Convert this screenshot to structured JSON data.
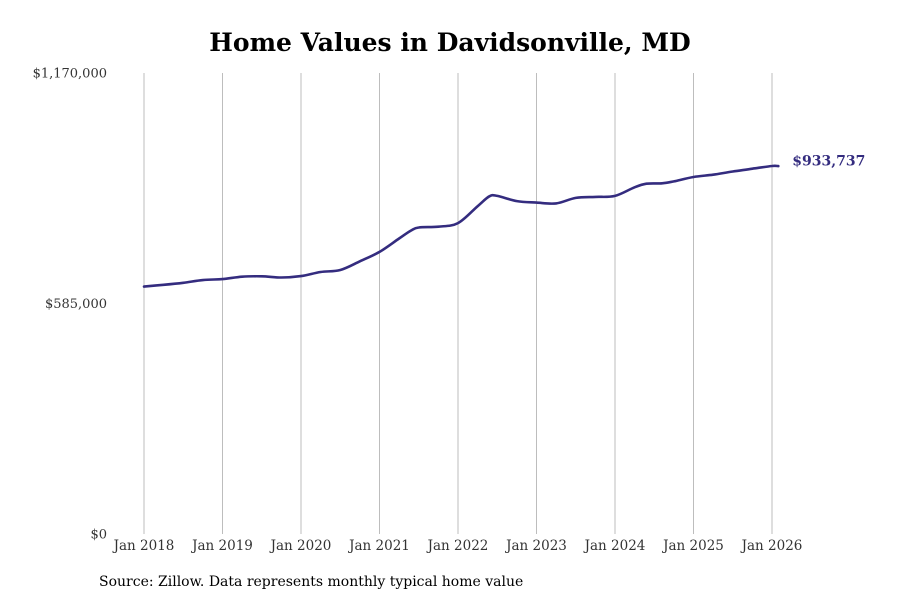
{
  "colors": {
    "line": "#342c7f",
    "grid": "#bdbdbd",
    "text": "#333333"
  },
  "chart_data": {
    "type": "line",
    "title": "Home Values in Davidsonville, MD",
    "source": "Source: Zillow. Data represents monthly typical home value",
    "ylim": [
      0,
      1170000
    ],
    "y_ticks": [
      {
        "value": 0,
        "label": "$0"
      },
      {
        "value": 585000,
        "label": "$585,000"
      },
      {
        "value": 1170000,
        "label": "$1,170,000"
      }
    ],
    "x_ticks": [
      {
        "value": 2018.0,
        "label": "Jan 2018"
      },
      {
        "value": 2019.0,
        "label": "Jan 2019"
      },
      {
        "value": 2020.0,
        "label": "Jan 2020"
      },
      {
        "value": 2021.0,
        "label": "Jan 2021"
      },
      {
        "value": 2022.0,
        "label": "Jan 2022"
      },
      {
        "value": 2023.0,
        "label": "Jan 2023"
      },
      {
        "value": 2024.0,
        "label": "Jan 2024"
      },
      {
        "value": 2025.0,
        "label": "Jan 2025"
      },
      {
        "value": 2026.0,
        "label": "Jan 2026"
      }
    ],
    "end_label": "$933,737",
    "series": [
      {
        "name": "Typical home value",
        "x": [
          2018.0,
          2018.25,
          2018.5,
          2018.75,
          2019.0,
          2019.25,
          2019.5,
          2019.75,
          2020.0,
          2020.25,
          2020.5,
          2020.75,
          2021.0,
          2021.25,
          2021.4,
          2021.5,
          2021.75,
          2022.0,
          2022.25,
          2022.4,
          2022.5,
          2022.75,
          2023.0,
          2023.25,
          2023.5,
          2023.75,
          2024.0,
          2024.25,
          2024.4,
          2024.6,
          2024.75,
          2025.0,
          2025.25,
          2025.5,
          2025.75,
          2026.0,
          2026.08
        ],
        "y": [
          628000,
          632500,
          637500,
          644500,
          647000,
          653000,
          654000,
          651000,
          654500,
          665000,
          670000,
          692000,
          716000,
          750000,
          770000,
          778000,
          780000,
          789000,
          832000,
          857000,
          858000,
          845000,
          841000,
          839000,
          853000,
          855500,
          858000,
          880000,
          889000,
          890000,
          895000,
          906000,
          912000,
          920000,
          927000,
          934000,
          933737
        ]
      }
    ]
  }
}
